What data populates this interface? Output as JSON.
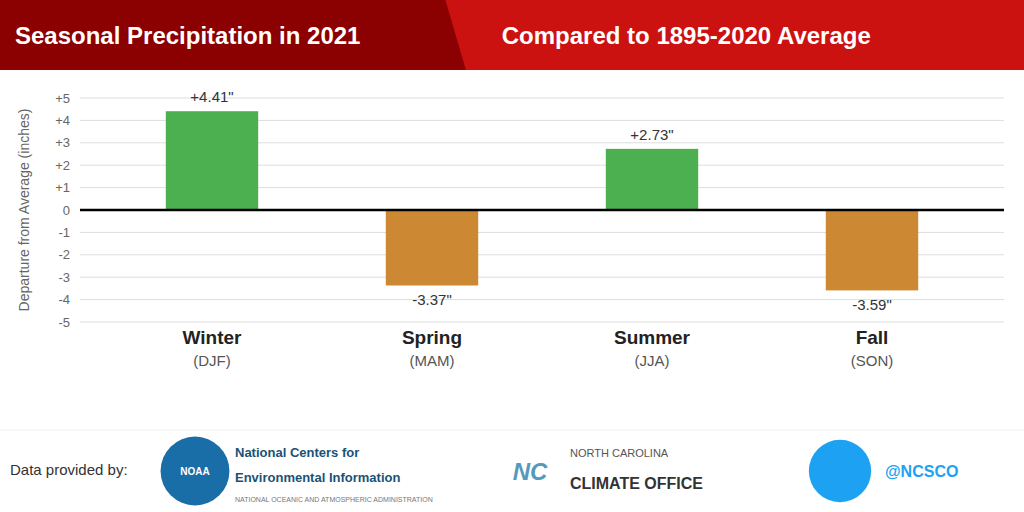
{
  "chart_data": {
    "type": "bar",
    "title": "Seasonal Precipitation in 2021",
    "subtitle": "Compared to 1895-2020 Average",
    "categories": [
      "Winter",
      "Spring",
      "Summer",
      "Fall"
    ],
    "subcategories": [
      "(DJF)",
      "(MAM)",
      "(JJA)",
      "(SON)"
    ],
    "values": [
      4.41,
      -3.37,
      2.73,
      -3.59
    ],
    "value_labels": [
      "+4.41\"",
      "-3.37\"",
      "+2.73\"",
      "-3.59\""
    ],
    "data_labels": true,
    "colors": [
      "#4CAF50",
      "#CC8833",
      "#4CAF50",
      "#CC8833"
    ],
    "y_label": "Departure from Average (inches)",
    "ylim": [
      -5,
      5
    ],
    "yticks": [
      -5,
      -4,
      -3,
      -2,
      -1,
      0,
      {
        "value": 1,
        "label": "+1"
      },
      {
        "value": 2,
        "label": "+2"
      },
      {
        "value": 3,
        "label": "+3"
      },
      {
        "value": 4,
        "label": "+4"
      },
      {
        "value": 5,
        "label": "+5"
      }
    ],
    "grid": true,
    "annotations": [
      "Data provided by:",
      "NOAA",
      "National Centers for",
      "Environmental Information",
      "NATIONAL OCEANIC AND ATMOSPHERIC ADMINISTRATION",
      "NC",
      "NORTH CAROLINA",
      "CLIMATE OFFICE",
      "@NCSCO"
    ]
  }
}
